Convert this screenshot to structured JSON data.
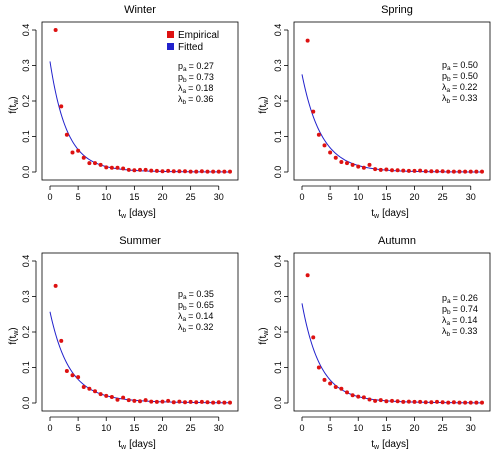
{
  "figure": {
    "legend": {
      "items": [
        {
          "label": "Empirical",
          "color": "#dd1111"
        },
        {
          "label": "Fitted",
          "color": "#2222cc"
        }
      ]
    }
  },
  "chart_data": [
    {
      "type": "scatter",
      "title": "Winter",
      "xlabel": "t",
      "xlabel_sub": "w",
      "xlabel_unit": "[days]",
      "ylabel": "f(t",
      "ylabel_sub": "w",
      "ylabel_close": ")",
      "xlim": [
        0,
        32
      ],
      "ylim": [
        0,
        0.4
      ],
      "xticks": [
        0,
        5,
        10,
        15,
        20,
        25,
        30
      ],
      "yticks": [
        0.0,
        0.1,
        0.2,
        0.3,
        0.4
      ],
      "has_legend": true,
      "params": [
        {
          "sym": "p",
          "sub": "a",
          "val": "= 0.27"
        },
        {
          "sym": "p",
          "sub": "b",
          "val": "= 0.73"
        },
        {
          "sym": "λ",
          "sub": "a",
          "val": "= 0.18"
        },
        {
          "sym": "λ",
          "sub": "b",
          "val": "= 0.36"
        }
      ],
      "fit": {
        "pa": 0.27,
        "pb": 0.73,
        "la": 0.18,
        "lb": 0.36
      },
      "empirical": {
        "x": [
          1,
          2,
          3,
          4,
          5,
          6,
          7,
          8,
          9,
          10,
          11,
          12,
          13,
          14,
          15,
          16,
          17,
          18,
          19,
          20,
          21,
          22,
          23,
          24,
          25,
          26,
          27,
          28,
          29,
          30,
          31,
          32
        ],
        "y": [
          0.4,
          0.185,
          0.105,
          0.055,
          0.06,
          0.04,
          0.025,
          0.025,
          0.02,
          0.013,
          0.012,
          0.012,
          0.01,
          0.006,
          0.005,
          0.006,
          0.006,
          0.004,
          0.003,
          0.002,
          0.003,
          0.002,
          0.002,
          0.002,
          0.001,
          0.001,
          0.002,
          0.001,
          0.001,
          0.001,
          0.001,
          0.001
        ]
      }
    },
    {
      "type": "scatter",
      "title": "Spring",
      "xlabel": "t",
      "xlabel_sub": "w",
      "xlabel_unit": "[days]",
      "ylabel": "f(t",
      "ylabel_sub": "w",
      "ylabel_close": ")",
      "xlim": [
        0,
        32
      ],
      "ylim": [
        0,
        0.4
      ],
      "xticks": [
        0,
        5,
        10,
        15,
        20,
        25,
        30
      ],
      "yticks": [
        0.0,
        0.1,
        0.2,
        0.3,
        0.4
      ],
      "has_legend": false,
      "params": [
        {
          "sym": "p",
          "sub": "a",
          "val": "= 0.50"
        },
        {
          "sym": "p",
          "sub": "b",
          "val": "= 0.50"
        },
        {
          "sym": "λ",
          "sub": "a",
          "val": "= 0.22"
        },
        {
          "sym": "λ",
          "sub": "b",
          "val": "= 0.33"
        }
      ],
      "fit": {
        "pa": 0.5,
        "pb": 0.5,
        "la": 0.22,
        "lb": 0.33
      },
      "empirical": {
        "x": [
          1,
          2,
          3,
          4,
          5,
          6,
          7,
          8,
          9,
          10,
          11,
          12,
          13,
          14,
          15,
          16,
          17,
          18,
          19,
          20,
          21,
          22,
          23,
          24,
          25,
          26,
          27,
          28,
          29,
          30,
          31,
          32
        ],
        "y": [
          0.37,
          0.17,
          0.105,
          0.075,
          0.055,
          0.04,
          0.028,
          0.025,
          0.02,
          0.015,
          0.012,
          0.02,
          0.008,
          0.006,
          0.007,
          0.005,
          0.005,
          0.004,
          0.003,
          0.003,
          0.004,
          0.002,
          0.002,
          0.002,
          0.002,
          0.001,
          0.001,
          0.001,
          0.001,
          0.001,
          0.001,
          0.001
        ]
      }
    },
    {
      "type": "scatter",
      "title": "Summer",
      "xlabel": "t",
      "xlabel_sub": "w",
      "xlabel_unit": "[days]",
      "ylabel": "f(t",
      "ylabel_sub": "w",
      "ylabel_close": ")",
      "xlim": [
        0,
        32
      ],
      "ylim": [
        0,
        0.4
      ],
      "xticks": [
        0,
        5,
        10,
        15,
        20,
        25,
        30
      ],
      "yticks": [
        0.0,
        0.1,
        0.2,
        0.3,
        0.4
      ],
      "has_legend": false,
      "params": [
        {
          "sym": "p",
          "sub": "a",
          "val": "= 0.35"
        },
        {
          "sym": "p",
          "sub": "b",
          "val": "= 0.65"
        },
        {
          "sym": "λ",
          "sub": "a",
          "val": "= 0.14"
        },
        {
          "sym": "λ",
          "sub": "b",
          "val": "= 0.32"
        }
      ],
      "fit": {
        "pa": 0.35,
        "pb": 0.65,
        "la": 0.14,
        "lb": 0.32
      },
      "empirical": {
        "x": [
          1,
          2,
          3,
          4,
          5,
          6,
          7,
          8,
          9,
          10,
          11,
          12,
          13,
          14,
          15,
          16,
          17,
          18,
          19,
          20,
          21,
          22,
          23,
          24,
          25,
          26,
          27,
          28,
          29,
          30,
          31,
          32
        ],
        "y": [
          0.33,
          0.175,
          0.09,
          0.078,
          0.073,
          0.045,
          0.04,
          0.033,
          0.025,
          0.02,
          0.017,
          0.009,
          0.015,
          0.008,
          0.006,
          0.005,
          0.008,
          0.004,
          0.003,
          0.004,
          0.006,
          0.002,
          0.004,
          0.002,
          0.003,
          0.002,
          0.003,
          0.002,
          0.001,
          0.002,
          0.001,
          0.001
        ]
      }
    },
    {
      "type": "scatter",
      "title": "Autumn",
      "xlabel": "t",
      "xlabel_sub": "w",
      "xlabel_unit": "[days]",
      "ylabel": "f(t",
      "ylabel_sub": "w",
      "ylabel_close": ")",
      "xlim": [
        0,
        32
      ],
      "ylim": [
        0,
        0.4
      ],
      "xticks": [
        0,
        5,
        10,
        15,
        20,
        25,
        30
      ],
      "yticks": [
        0.0,
        0.1,
        0.2,
        0.3,
        0.4
      ],
      "has_legend": false,
      "params": [
        {
          "sym": "p",
          "sub": "a",
          "val": "= 0.26"
        },
        {
          "sym": "p",
          "sub": "b",
          "val": "= 0.74"
        },
        {
          "sym": "λ",
          "sub": "a",
          "val": "= 0.14"
        },
        {
          "sym": "λ",
          "sub": "b",
          "val": "= 0.33"
        }
      ],
      "fit": {
        "pa": 0.26,
        "pb": 0.74,
        "la": 0.14,
        "lb": 0.33
      },
      "empirical": {
        "x": [
          1,
          2,
          3,
          4,
          5,
          6,
          7,
          8,
          9,
          10,
          11,
          12,
          13,
          14,
          15,
          16,
          17,
          18,
          19,
          20,
          21,
          22,
          23,
          24,
          25,
          26,
          27,
          28,
          29,
          30,
          31,
          32
        ],
        "y": [
          0.36,
          0.185,
          0.1,
          0.065,
          0.055,
          0.045,
          0.04,
          0.03,
          0.022,
          0.018,
          0.016,
          0.01,
          0.006,
          0.008,
          0.005,
          0.006,
          0.005,
          0.003,
          0.004,
          0.003,
          0.003,
          0.002,
          0.002,
          0.003,
          0.002,
          0.001,
          0.002,
          0.001,
          0.001,
          0.001,
          0.001,
          0.001
        ]
      }
    }
  ]
}
